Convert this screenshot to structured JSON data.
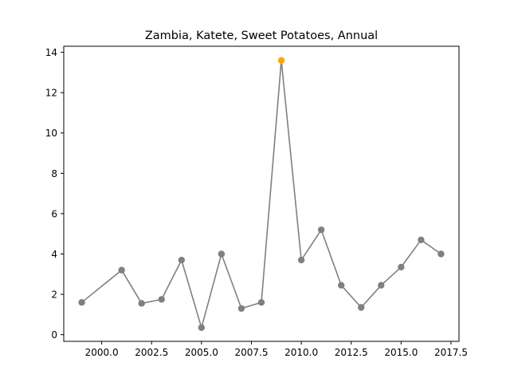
{
  "chart_data": {
    "type": "line",
    "title": "Zambia, Katete, Sweet Potatoes, Annual",
    "xlabel": "",
    "ylabel": "",
    "xlim": [
      1998.1,
      2017.9
    ],
    "ylim": [
      -0.33,
      14.3
    ],
    "xticks": [
      2000.0,
      2002.5,
      2005.0,
      2007.5,
      2010.0,
      2012.5,
      2015.0,
      2017.5
    ],
    "xtick_labels": [
      "2000.0",
      "2002.5",
      "2005.0",
      "2007.5",
      "2010.0",
      "2012.5",
      "2015.0",
      "2017.5"
    ],
    "yticks": [
      0,
      2,
      4,
      6,
      8,
      10,
      12,
      14
    ],
    "ytick_labels": [
      "0",
      "2",
      "4",
      "6",
      "8",
      "10",
      "12",
      "14"
    ],
    "grid": false,
    "series": [
      {
        "x": [
          1999,
          2001,
          2002,
          2003,
          2004,
          2005,
          2006,
          2007,
          2008,
          2009,
          2010,
          2011,
          2012,
          2013,
          2014,
          2015,
          2016,
          2017
        ],
        "y": [
          1.6,
          3.2,
          1.55,
          1.75,
          3.7,
          0.35,
          4.0,
          1.3,
          1.6,
          13.6,
          3.7,
          5.2,
          2.45,
          1.35,
          2.45,
          3.35,
          4.7,
          4.0
        ],
        "color": "#808080",
        "highlight_index": 9,
        "highlight_color": "#FFA500"
      }
    ]
  }
}
